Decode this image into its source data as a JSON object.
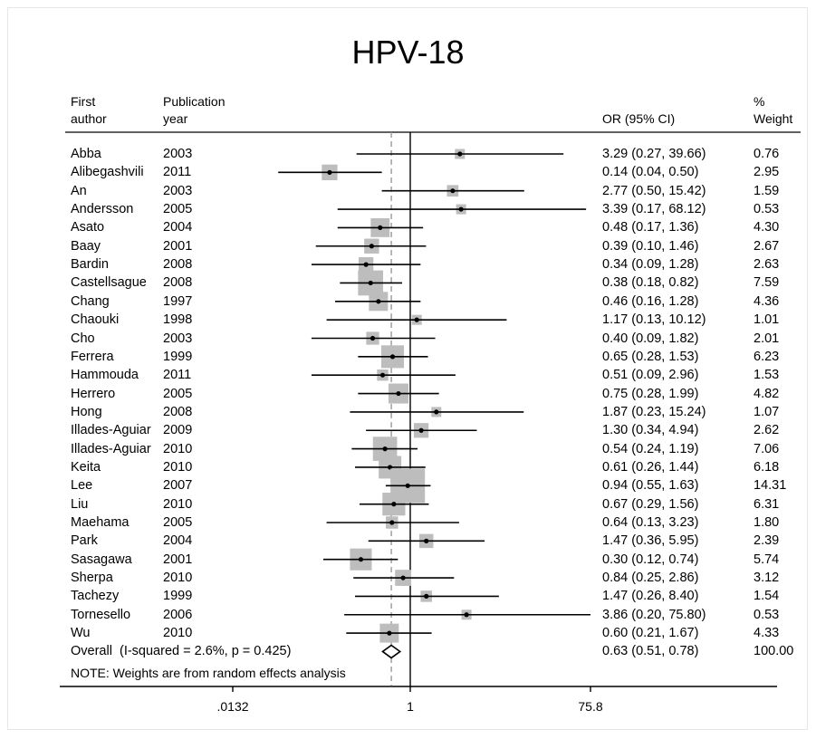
{
  "chart_data": {
    "type": "forest",
    "title": "HPV-18",
    "headers": {
      "author_line1": "First",
      "author_line2": "author",
      "year_line1": "Publication",
      "year_line2": "year",
      "or": "OR (95% CI)",
      "weight_line1": "%",
      "weight_line2": "Weight"
    },
    "studies": [
      {
        "author": "Abba",
        "year": "2003",
        "or": 3.29,
        "lo": 0.27,
        "hi": 39.66,
        "or_text": "3.29 (0.27, 39.66)",
        "weight": 0.76,
        "weight_text": "0.76"
      },
      {
        "author": "Alibegashvili",
        "year": "2011",
        "or": 0.14,
        "lo": 0.04,
        "hi": 0.5,
        "or_text": "0.14 (0.04, 0.50)",
        "weight": 2.95,
        "weight_text": "2.95"
      },
      {
        "author": "An",
        "year": "2003",
        "or": 2.77,
        "lo": 0.5,
        "hi": 15.42,
        "or_text": "2.77 (0.50, 15.42)",
        "weight": 1.59,
        "weight_text": "1.59"
      },
      {
        "author": "Andersson",
        "year": "2005",
        "or": 3.39,
        "lo": 0.17,
        "hi": 68.12,
        "or_text": "3.39 (0.17, 68.12)",
        "weight": 0.53,
        "weight_text": "0.53"
      },
      {
        "author": "Asato",
        "year": "2004",
        "or": 0.48,
        "lo": 0.17,
        "hi": 1.36,
        "or_text": "0.48 (0.17, 1.36)",
        "weight": 4.3,
        "weight_text": "4.30"
      },
      {
        "author": "Baay",
        "year": "2001",
        "or": 0.39,
        "lo": 0.1,
        "hi": 1.46,
        "or_text": "0.39 (0.10, 1.46)",
        "weight": 2.67,
        "weight_text": "2.67"
      },
      {
        "author": "Bardin",
        "year": "2008",
        "or": 0.34,
        "lo": 0.09,
        "hi": 1.28,
        "or_text": "0.34 (0.09, 1.28)",
        "weight": 2.63,
        "weight_text": "2.63"
      },
      {
        "author": "Castellsague",
        "year": "2008",
        "or": 0.38,
        "lo": 0.18,
        "hi": 0.82,
        "or_text": "0.38 (0.18, 0.82)",
        "weight": 7.59,
        "weight_text": "7.59"
      },
      {
        "author": "Chang",
        "year": "1997",
        "or": 0.46,
        "lo": 0.16,
        "hi": 1.28,
        "or_text": "0.46 (0.16, 1.28)",
        "weight": 4.36,
        "weight_text": "4.36"
      },
      {
        "author": "Chaouki",
        "year": "1998",
        "or": 1.17,
        "lo": 0.13,
        "hi": 10.12,
        "or_text": "1.17 (0.13, 10.12)",
        "weight": 1.01,
        "weight_text": "1.01"
      },
      {
        "author": "Cho",
        "year": "2003",
        "or": 0.4,
        "lo": 0.09,
        "hi": 1.82,
        "or_text": "0.40 (0.09, 1.82)",
        "weight": 2.01,
        "weight_text": "2.01"
      },
      {
        "author": "Ferrera",
        "year": "1999",
        "or": 0.65,
        "lo": 0.28,
        "hi": 1.53,
        "or_text": "0.65 (0.28, 1.53)",
        "weight": 6.23,
        "weight_text": "6.23"
      },
      {
        "author": "Hammouda",
        "year": "2011",
        "or": 0.51,
        "lo": 0.09,
        "hi": 2.96,
        "or_text": "0.51 (0.09, 2.96)",
        "weight": 1.53,
        "weight_text": "1.53"
      },
      {
        "author": "Herrero",
        "year": "2005",
        "or": 0.75,
        "lo": 0.28,
        "hi": 1.99,
        "or_text": "0.75 (0.28, 1.99)",
        "weight": 4.82,
        "weight_text": "4.82"
      },
      {
        "author": "Hong",
        "year": "2008",
        "or": 1.87,
        "lo": 0.23,
        "hi": 15.24,
        "or_text": "1.87 (0.23, 15.24)",
        "weight": 1.07,
        "weight_text": "1.07"
      },
      {
        "author": "Illades-Aguiar",
        "year": "2009",
        "or": 1.3,
        "lo": 0.34,
        "hi": 4.94,
        "or_text": "1.30 (0.34, 4.94)",
        "weight": 2.62,
        "weight_text": "2.62"
      },
      {
        "author": "Illades-Aguiar",
        "year": "2010",
        "or": 0.54,
        "lo": 0.24,
        "hi": 1.19,
        "or_text": "0.54 (0.24, 1.19)",
        "weight": 7.06,
        "weight_text": "7.06"
      },
      {
        "author": "Keita",
        "year": "2010",
        "or": 0.61,
        "lo": 0.26,
        "hi": 1.44,
        "or_text": "0.61 (0.26, 1.44)",
        "weight": 6.18,
        "weight_text": "6.18"
      },
      {
        "author": "Lee",
        "year": "2007",
        "or": 0.94,
        "lo": 0.55,
        "hi": 1.63,
        "or_text": "0.94 (0.55, 1.63)",
        "weight": 14.31,
        "weight_text": "14.31"
      },
      {
        "author": "Liu",
        "year": "2010",
        "or": 0.67,
        "lo": 0.29,
        "hi": 1.56,
        "or_text": "0.67 (0.29, 1.56)",
        "weight": 6.31,
        "weight_text": "6.31"
      },
      {
        "author": "Maehama",
        "year": "2005",
        "or": 0.64,
        "lo": 0.13,
        "hi": 3.23,
        "or_text": "0.64 (0.13, 3.23)",
        "weight": 1.8,
        "weight_text": "1.80"
      },
      {
        "author": "Park",
        "year": "2004",
        "or": 1.47,
        "lo": 0.36,
        "hi": 5.95,
        "or_text": "1.47 (0.36, 5.95)",
        "weight": 2.39,
        "weight_text": "2.39"
      },
      {
        "author": "Sasagawa",
        "year": "2001",
        "or": 0.3,
        "lo": 0.12,
        "hi": 0.74,
        "or_text": "0.30 (0.12, 0.74)",
        "weight": 5.74,
        "weight_text": "5.74"
      },
      {
        "author": "Sherpa",
        "year": "2010",
        "or": 0.84,
        "lo": 0.25,
        "hi": 2.86,
        "or_text": "0.84 (0.25, 2.86)",
        "weight": 3.12,
        "weight_text": "3.12"
      },
      {
        "author": "Tachezy",
        "year": "1999",
        "or": 1.47,
        "lo": 0.26,
        "hi": 8.4,
        "or_text": "1.47 (0.26, 8.40)",
        "weight": 1.54,
        "weight_text": "1.54"
      },
      {
        "author": "Tornesello",
        "year": "2006",
        "or": 3.86,
        "lo": 0.2,
        "hi": 75.8,
        "or_text": "3.86 (0.20, 75.80)",
        "weight": 0.53,
        "weight_text": "0.53"
      },
      {
        "author": "Wu",
        "year": "2010",
        "or": 0.6,
        "lo": 0.21,
        "hi": 1.67,
        "or_text": "0.60 (0.21, 1.67)",
        "weight": 4.33,
        "weight_text": "4.33"
      }
    ],
    "overall": {
      "label": "Overall  (I-squared = 2.6%, p = 0.425)",
      "or": 0.63,
      "lo": 0.51,
      "hi": 0.78,
      "or_text": "0.63 (0.51, 0.78)",
      "weight_text": "100.00"
    },
    "note": "NOTE: Weights are from random effects analysis",
    "x_axis": {
      "scale": "log",
      "ticks": [
        0.0132,
        1,
        75.8
      ],
      "tick_labels": [
        ".0132",
        "1",
        "75.8"
      ],
      "null_line": 1
    },
    "grid": false
  }
}
